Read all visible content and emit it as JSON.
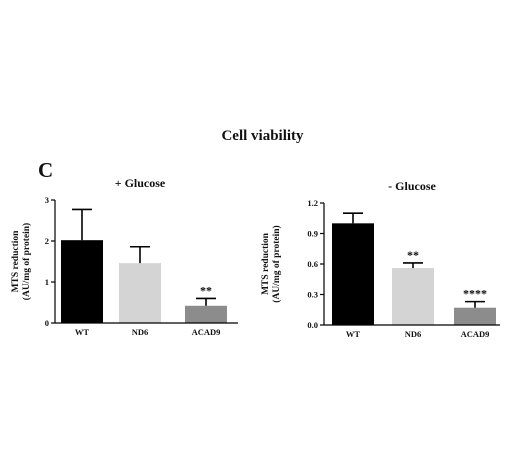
{
  "figure": {
    "title": "Cell viability",
    "panel_label": "C"
  },
  "chart_data": [
    {
      "type": "bar",
      "title": "+ Glucose",
      "xlabel": "",
      "ylabel": "MTS reduction (AU/mg of protein)",
      "ylabel_lines": [
        "MTS reduction",
        "(AU/mg of protein)"
      ],
      "categories": [
        "WT",
        "ND6",
        "ACAD9"
      ],
      "values": [
        2.02,
        1.46,
        0.42
      ],
      "errors": [
        0.75,
        0.4,
        0.18
      ],
      "significance": [
        "",
        "",
        "**"
      ],
      "colors": [
        "#000000",
        "#d4d4d4",
        "#8c8c8c"
      ],
      "ylim": [
        0,
        3
      ],
      "yticks": [
        0,
        1,
        2,
        3
      ],
      "ytick_labels": [
        "0",
        "1",
        "2",
        "3"
      ],
      "grid": false,
      "legend": "none"
    },
    {
      "type": "bar",
      "title": "- Glucose",
      "xlabel": "",
      "ylabel": "MTS reduction (AU/mg of protein)",
      "ylabel_lines": [
        "MTS reduction",
        "(AU/mg of protein)"
      ],
      "categories": [
        "WT",
        "ND6",
        "ACAD9"
      ],
      "values": [
        1.0,
        0.56,
        0.17
      ],
      "errors": [
        0.1,
        0.05,
        0.06
      ],
      "significance": [
        "",
        "**",
        "****"
      ],
      "colors": [
        "#000000",
        "#d4d4d4",
        "#8c8c8c"
      ],
      "ylim": [
        0,
        1.2
      ],
      "yticks": [
        0,
        0.3,
        0.6,
        0.9,
        1.2
      ],
      "ytick_labels": [
        "0.0",
        "0.3",
        "0.6",
        "0.9",
        "1.2"
      ],
      "grid": false,
      "legend": "none"
    }
  ]
}
